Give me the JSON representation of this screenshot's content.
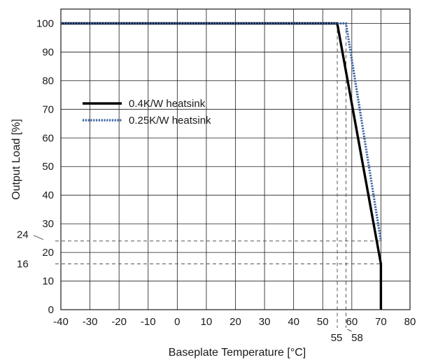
{
  "chart_data": {
    "type": "line",
    "title": "",
    "xlabel": "Baseplate Temperature [°C]",
    "ylabel": "Output Load [%]",
    "xlim": [
      -40,
      80
    ],
    "ylim": [
      0,
      105
    ],
    "xticks": [
      -40,
      -30,
      -20,
      -10,
      0,
      10,
      20,
      30,
      40,
      50,
      60,
      70,
      80
    ],
    "yticks": [
      0,
      10,
      20,
      30,
      40,
      50,
      60,
      70,
      80,
      90,
      100
    ],
    "grid": true,
    "legend_position": "left-center",
    "series": [
      {
        "name": "0.4K/W heatsink",
        "style": "solid",
        "color": "#000000",
        "x": [
          -40,
          55,
          70,
          70
        ],
        "y": [
          100,
          100,
          16,
          0
        ]
      },
      {
        "name": "0.25K/W heatsink",
        "style": "dotted",
        "color": "#3a64a8",
        "x": [
          -40,
          58,
          70
        ],
        "y": [
          100,
          100,
          24
        ]
      }
    ],
    "reference_lines": [
      {
        "axis": "y",
        "value": 24,
        "label": "24"
      },
      {
        "axis": "y",
        "value": 16,
        "label": "16"
      },
      {
        "axis": "x",
        "value": 55,
        "label": "55"
      },
      {
        "axis": "x",
        "value": 58,
        "label": "58"
      }
    ]
  }
}
